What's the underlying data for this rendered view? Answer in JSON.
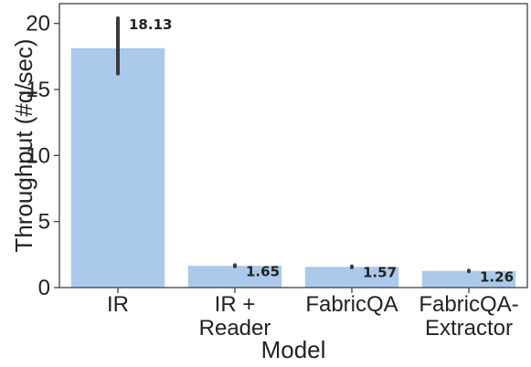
{
  "chart_data": {
    "type": "bar",
    "xlabel": "Model",
    "ylabel": "Throughput (#q/sec)",
    "ylim": [
      0,
      21.5
    ],
    "yticks": [
      0,
      5,
      10,
      15,
      20
    ],
    "grid": false,
    "bar_color": "#abc9ea",
    "errorbar_color": "#3a3a3a",
    "categories": [
      [
        "IR"
      ],
      [
        "IR +",
        "Reader"
      ],
      [
        "FabricQA"
      ],
      [
        "FabricQA-",
        "Extractor"
      ]
    ],
    "values": [
      18.13,
      1.65,
      1.57,
      1.26
    ],
    "value_labels": [
      "18.13",
      "1.65",
      "1.57",
      "1.26"
    ],
    "error_low": [
      16.2,
      1.6,
      1.53,
      1.23
    ],
    "error_high": [
      20.4,
      1.7,
      1.61,
      1.29
    ]
  }
}
